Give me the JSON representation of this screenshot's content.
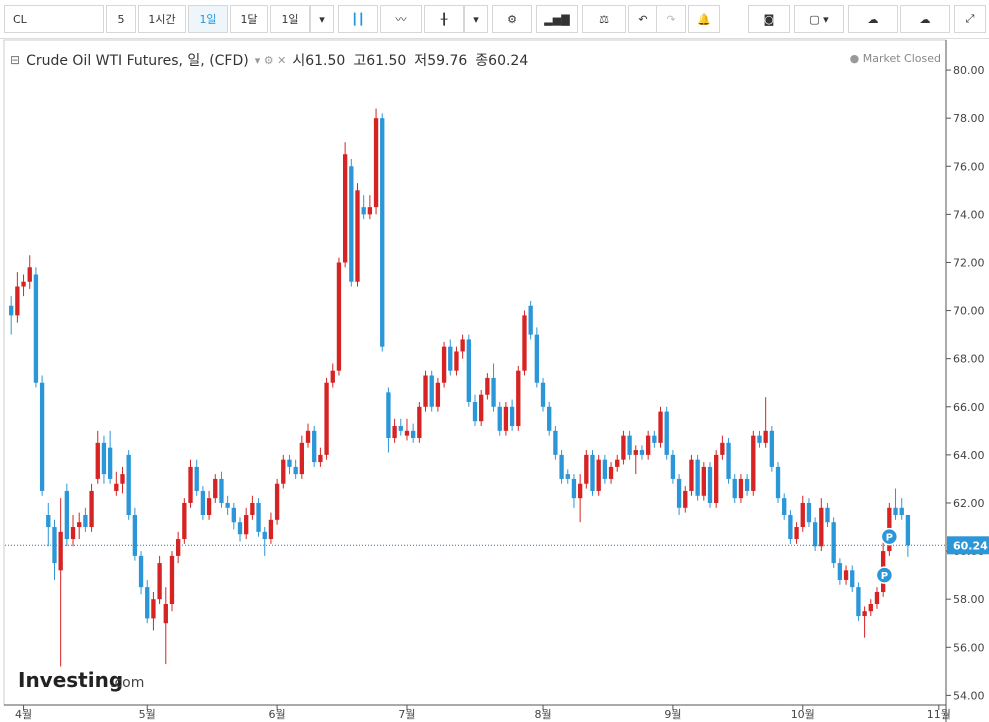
{
  "toolbar": {
    "symbol": "CL",
    "buttons": [
      "5",
      "1시간",
      "1일",
      "1달",
      "1일"
    ],
    "active_button": 2
  },
  "chart_data": {
    "type": "candlestick",
    "title": "Crude Oil WTI Futures, 일, (CFD)",
    "ohlc": {
      "labels": [
        "시",
        "고",
        "저",
        "종"
      ],
      "values": [
        61.5,
        61.5,
        59.76,
        60.24
      ],
      "value_labels": [
        "61.50",
        "61.50",
        "59.76",
        "60.24"
      ]
    },
    "status": "Market Closed",
    "up_color": "#d62323",
    "down_color": "#2b96d8",
    "candles": [
      [
        70.2,
        70.6,
        69.0,
        69.8
      ],
      [
        69.8,
        71.6,
        69.5,
        71.0
      ],
      [
        71.0,
        71.5,
        70.6,
        71.2
      ],
      [
        71.2,
        72.3,
        70.9,
        71.8
      ],
      [
        71.5,
        71.8,
        66.8,
        67.0
      ],
      [
        67.0,
        67.3,
        62.3,
        62.5
      ],
      [
        61.5,
        62.0,
        60.2,
        61.0
      ],
      [
        61.0,
        61.3,
        58.8,
        59.5
      ],
      [
        59.2,
        62.2,
        55.2,
        60.8
      ],
      [
        62.5,
        62.8,
        60.2,
        60.5
      ],
      [
        60.5,
        61.5,
        60.2,
        61.0
      ],
      [
        61.0,
        61.6,
        60.5,
        61.2
      ],
      [
        61.5,
        61.8,
        60.8,
        61.0
      ],
      [
        61.0,
        62.8,
        60.8,
        62.5
      ],
      [
        63.0,
        65.0,
        62.8,
        64.5
      ],
      [
        64.5,
        64.8,
        62.8,
        63.2
      ],
      [
        64.3,
        65.0,
        62.8,
        63.0
      ],
      [
        62.5,
        63.3,
        62.3,
        62.8
      ],
      [
        62.8,
        63.5,
        62.4,
        63.2
      ],
      [
        64.0,
        64.2,
        61.3,
        61.5
      ],
      [
        61.5,
        61.8,
        59.6,
        59.8
      ],
      [
        59.8,
        60.0,
        58.2,
        58.5
      ],
      [
        58.5,
        58.8,
        57.0,
        57.2
      ],
      [
        57.2,
        58.3,
        56.7,
        58.0
      ],
      [
        58.0,
        59.8,
        57.8,
        59.5
      ],
      [
        57.0,
        58.5,
        55.3,
        57.8
      ],
      [
        57.8,
        60.0,
        57.5,
        59.8
      ],
      [
        59.8,
        60.8,
        59.5,
        60.5
      ],
      [
        60.5,
        62.2,
        60.3,
        62.0
      ],
      [
        62.0,
        63.8,
        61.8,
        63.5
      ],
      [
        63.5,
        63.8,
        62.3,
        62.5
      ],
      [
        62.5,
        62.7,
        61.3,
        61.5
      ],
      [
        61.5,
        62.5,
        61.3,
        62.2
      ],
      [
        62.2,
        63.2,
        62.0,
        63.0
      ],
      [
        63.0,
        63.3,
        61.8,
        62.0
      ],
      [
        62.0,
        62.3,
        61.5,
        61.8
      ],
      [
        61.8,
        62.0,
        60.9,
        61.2
      ],
      [
        61.2,
        61.4,
        60.4,
        60.7
      ],
      [
        60.7,
        61.8,
        60.5,
        61.5
      ],
      [
        61.5,
        62.3,
        61.3,
        62.0
      ],
      [
        62.0,
        62.2,
        60.6,
        60.8
      ],
      [
        60.8,
        61.0,
        59.8,
        60.5
      ],
      [
        60.5,
        61.6,
        60.3,
        61.3
      ],
      [
        61.3,
        63.0,
        61.1,
        62.8
      ],
      [
        62.8,
        64.0,
        62.6,
        63.8
      ],
      [
        63.8,
        64.0,
        63.2,
        63.5
      ],
      [
        63.5,
        63.8,
        63.0,
        63.2
      ],
      [
        63.2,
        64.8,
        63.0,
        64.5
      ],
      [
        64.5,
        65.3,
        64.3,
        65.0
      ],
      [
        65.0,
        65.2,
        63.5,
        63.7
      ],
      [
        63.7,
        64.3,
        63.5,
        64.0
      ],
      [
        64.0,
        67.2,
        63.8,
        67.0
      ],
      [
        67.0,
        67.8,
        66.8,
        67.5
      ],
      [
        67.5,
        72.2,
        67.3,
        72.0
      ],
      [
        72.0,
        77.0,
        71.8,
        76.5
      ],
      [
        76.0,
        76.3,
        71.0,
        71.2
      ],
      [
        71.2,
        75.3,
        71.0,
        75.0
      ],
      [
        74.3,
        74.8,
        73.8,
        74.0
      ],
      [
        74.0,
        74.8,
        73.8,
        74.3
      ],
      [
        74.3,
        78.4,
        74.0,
        78.0
      ],
      [
        78.0,
        78.2,
        68.3,
        68.5
      ],
      [
        66.6,
        66.8,
        64.1,
        64.7
      ],
      [
        64.7,
        65.5,
        64.5,
        65.2
      ],
      [
        65.2,
        65.5,
        64.8,
        65.0
      ],
      [
        64.8,
        65.5,
        64.6,
        65.0
      ],
      [
        65.0,
        65.3,
        64.5,
        64.7
      ],
      [
        64.7,
        66.2,
        64.5,
        66.0
      ],
      [
        66.0,
        67.5,
        65.8,
        67.3
      ],
      [
        67.3,
        67.5,
        65.8,
        66.0
      ],
      [
        66.0,
        67.2,
        65.8,
        67.0
      ],
      [
        67.0,
        68.7,
        66.8,
        68.5
      ],
      [
        68.5,
        68.8,
        67.3,
        67.5
      ],
      [
        67.5,
        68.5,
        67.3,
        68.3
      ],
      [
        68.3,
        69.0,
        68.0,
        68.8
      ],
      [
        68.8,
        69.0,
        66.0,
        66.2
      ],
      [
        66.2,
        66.5,
        65.2,
        65.4
      ],
      [
        65.4,
        66.7,
        65.2,
        66.5
      ],
      [
        66.5,
        67.4,
        66.3,
        67.2
      ],
      [
        67.2,
        67.8,
        65.8,
        66.0
      ],
      [
        66.0,
        66.2,
        64.8,
        65.0
      ],
      [
        65.0,
        66.2,
        64.8,
        66.0
      ],
      [
        66.0,
        66.3,
        65.0,
        65.2
      ],
      [
        65.2,
        67.7,
        65.0,
        67.5
      ],
      [
        67.5,
        70.0,
        67.3,
        69.8
      ],
      [
        70.2,
        70.4,
        68.8,
        69.0
      ],
      [
        69.0,
        69.3,
        66.8,
        67.0
      ],
      [
        67.0,
        67.2,
        65.8,
        66.0
      ],
      [
        66.0,
        66.2,
        64.8,
        65.0
      ],
      [
        65.0,
        65.2,
        63.8,
        64.0
      ],
      [
        64.0,
        64.2,
        62.8,
        63.0
      ],
      [
        63.2,
        63.4,
        62.8,
        63.0
      ],
      [
        63.0,
        63.2,
        61.8,
        62.2
      ],
      [
        62.2,
        63.2,
        61.2,
        62.8
      ],
      [
        62.8,
        64.2,
        62.6,
        64.0
      ],
      [
        64.0,
        64.2,
        62.3,
        62.5
      ],
      [
        62.5,
        64.0,
        62.3,
        63.8
      ],
      [
        63.8,
        64.0,
        62.8,
        63.0
      ],
      [
        63.0,
        63.7,
        62.8,
        63.5
      ],
      [
        63.5,
        64.0,
        63.3,
        63.8
      ],
      [
        63.8,
        65.0,
        63.6,
        64.8
      ],
      [
        64.8,
        65.0,
        63.8,
        64.0
      ],
      [
        64.0,
        64.4,
        63.2,
        64.2
      ],
      [
        64.2,
        64.4,
        63.8,
        64.0
      ],
      [
        64.0,
        65.0,
        63.8,
        64.8
      ],
      [
        64.8,
        65.0,
        64.3,
        64.5
      ],
      [
        64.5,
        66.0,
        64.3,
        65.8
      ],
      [
        65.8,
        66.0,
        63.8,
        64.0
      ],
      [
        64.0,
        64.2,
        62.8,
        63.0
      ],
      [
        63.0,
        63.2,
        61.5,
        61.8
      ],
      [
        61.8,
        62.7,
        61.6,
        62.5
      ],
      [
        62.5,
        64.0,
        62.3,
        63.8
      ],
      [
        63.8,
        64.0,
        62.1,
        62.3
      ],
      [
        62.3,
        63.7,
        62.1,
        63.5
      ],
      [
        63.5,
        63.7,
        61.8,
        62.0
      ],
      [
        62.0,
        64.2,
        61.8,
        64.0
      ],
      [
        64.0,
        64.8,
        63.8,
        64.5
      ],
      [
        64.5,
        64.7,
        62.8,
        63.0
      ],
      [
        63.0,
        63.2,
        62.0,
        62.2
      ],
      [
        62.2,
        63.2,
        62.0,
        63.0
      ],
      [
        63.0,
        63.2,
        62.3,
        62.5
      ],
      [
        62.5,
        65.0,
        62.3,
        64.8
      ],
      [
        64.8,
        65.0,
        64.3,
        64.5
      ],
      [
        64.5,
        66.4,
        64.3,
        65.0
      ],
      [
        65.0,
        65.2,
        63.3,
        63.5
      ],
      [
        63.5,
        63.7,
        62.0,
        62.2
      ],
      [
        62.2,
        62.4,
        61.3,
        61.5
      ],
      [
        61.5,
        61.7,
        60.3,
        60.5
      ],
      [
        60.5,
        61.2,
        60.3,
        61.0
      ],
      [
        61.0,
        62.3,
        60.8,
        62.0
      ],
      [
        62.0,
        62.2,
        61.0,
        61.2
      ],
      [
        61.2,
        61.4,
        60.0,
        60.2
      ],
      [
        60.2,
        62.2,
        60.0,
        61.8
      ],
      [
        61.8,
        62.0,
        61.0,
        61.2
      ],
      [
        61.2,
        61.4,
        59.3,
        59.5
      ],
      [
        59.5,
        59.7,
        58.6,
        58.8
      ],
      [
        58.8,
        59.4,
        58.6,
        59.2
      ],
      [
        59.2,
        59.4,
        58.3,
        58.5
      ],
      [
        58.5,
        58.7,
        57.1,
        57.3
      ],
      [
        57.3,
        57.7,
        56.4,
        57.5
      ],
      [
        57.5,
        58.0,
        57.3,
        57.8
      ],
      [
        57.8,
        58.5,
        57.6,
        58.3
      ],
      [
        58.3,
        60.4,
        58.1,
        60.0
      ],
      [
        60.0,
        62.0,
        59.8,
        61.8
      ],
      [
        61.8,
        62.6,
        61.3,
        61.5
      ],
      [
        61.8,
        62.2,
        61.3,
        61.5
      ],
      [
        61.5,
        61.5,
        59.76,
        60.24
      ]
    ],
    "xlim": [
      -1,
      151
    ],
    "xticks": [
      {
        "value": 2,
        "label": "4월"
      },
      {
        "value": 22,
        "label": "5월"
      },
      {
        "value": 43,
        "label": "6월"
      },
      {
        "value": 64,
        "label": "7월"
      },
      {
        "value": 86,
        "label": "8월"
      },
      {
        "value": 107,
        "label": "9월"
      },
      {
        "value": 128,
        "label": "10월"
      },
      {
        "value": 150,
        "label": "11월"
      }
    ],
    "ylim": [
      53.6,
      81.25
    ],
    "yticks": [
      {
        "value": 54,
        "label": "54.00"
      },
      {
        "value": 56,
        "label": "56.00"
      },
      {
        "value": 58,
        "label": "58.00"
      },
      {
        "value": 60,
        "label": "60.00"
      },
      {
        "value": 62,
        "label": "62.00"
      },
      {
        "value": 64,
        "label": "64.00"
      },
      {
        "value": 66,
        "label": "66.00"
      },
      {
        "value": 68,
        "label": "68.00"
      },
      {
        "value": 70,
        "label": "70.00"
      },
      {
        "value": 72,
        "label": "72.00"
      },
      {
        "value": 74,
        "label": "74.00"
      },
      {
        "value": 76,
        "label": "76.00"
      },
      {
        "value": 78,
        "label": "78.00"
      },
      {
        "value": 80,
        "label": "80.00"
      }
    ],
    "last_price": {
      "value": 60.24,
      "label": "60.24"
    },
    "annotations": [
      {
        "x": 141.2,
        "y": 59.0,
        "text": "P"
      },
      {
        "x": 142,
        "y": 60.6,
        "text": "P"
      }
    ]
  },
  "brand": {
    "name": "Investing",
    "suffix": ".com"
  }
}
